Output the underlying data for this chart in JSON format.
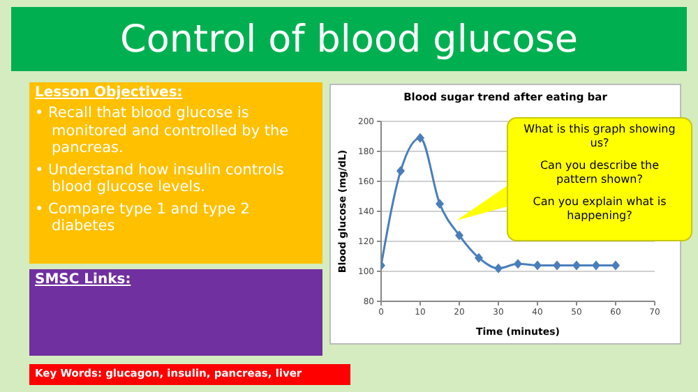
{
  "chart_data": {
    "type": "line",
    "title": "Blood sugar trend after eating bar",
    "xlabel": "Time (minutes)",
    "ylabel": "Blood glucose (mg/dL)",
    "x": [
      0,
      5,
      10,
      15,
      20,
      25,
      30,
      35,
      40,
      45,
      50,
      55,
      60
    ],
    "series": [
      {
        "color": "#4a7ebb",
        "values": [
          104,
          167,
          189,
          145,
          124,
          109,
          102,
          105,
          104,
          104,
          104,
          104,
          104
        ]
      }
    ],
    "xlim": [
      0,
      70
    ],
    "xticks": [
      0,
      10,
      20,
      30,
      40,
      50,
      60,
      70
    ],
    "ylim": [
      80,
      200
    ],
    "yticks": [
      80,
      100,
      120,
      140,
      160,
      180,
      200
    ],
    "grid": "y",
    "marker": "diamond",
    "line_style": "solid",
    "annotations": [
      "Control of blood glucose",
      "Lesson Objectives:",
      "• Recall that blood glucose is monitored and controlled by the pancreas.",
      "• Understand how insulin controls blood glucose levels.",
      "• Compare type 1 and type 2 diabetes",
      "SMSC Links:",
      "Key Words: glucagon, insulin, pancreas, liver",
      "What is this graph showing us?",
      "Can you describe the pattern shown?",
      "Can you explain what is happening?"
    ]
  }
}
